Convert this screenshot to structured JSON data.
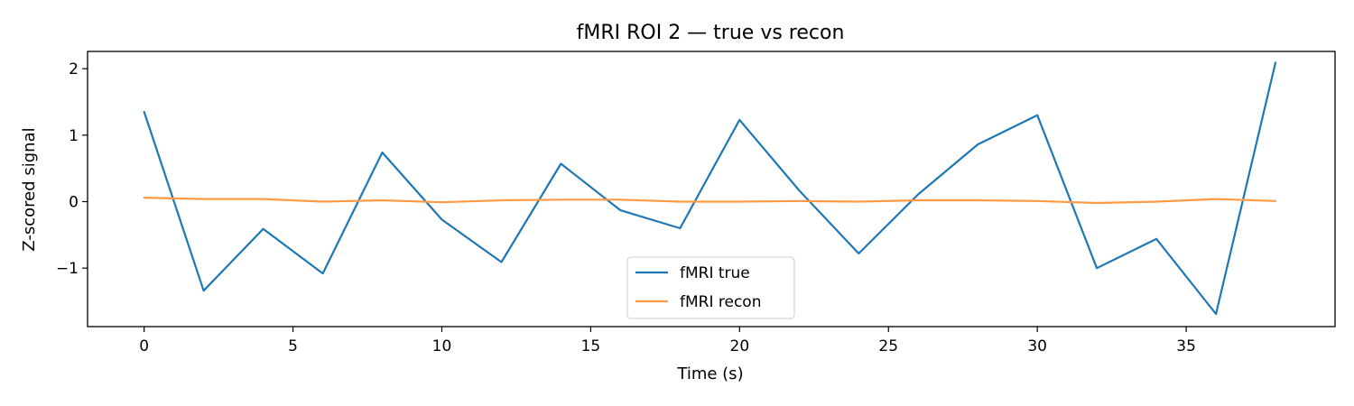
{
  "chart_data": {
    "type": "line",
    "title": "fMRI ROI 2 — true vs recon",
    "xlabel": "Time (s)",
    "ylabel": "Z-scored signal",
    "xlim": [
      -1.9,
      40.0
    ],
    "ylim": [
      -1.88,
      2.26
    ],
    "x_ticks": [
      0,
      5,
      10,
      15,
      20,
      25,
      30,
      35
    ],
    "x_tick_labels": [
      "0",
      "5",
      "10",
      "15",
      "20",
      "25",
      "30",
      "35"
    ],
    "y_ticks": [
      -1,
      0,
      1,
      2
    ],
    "y_tick_labels": [
      "−1",
      "0",
      "1",
      "2"
    ],
    "grid": false,
    "legend_position": "lower-center",
    "x": [
      0,
      2,
      4,
      6,
      8,
      10,
      12,
      14,
      16,
      18,
      20,
      22,
      24,
      26,
      28,
      30,
      32,
      34,
      36,
      38
    ],
    "series": [
      {
        "name": "fMRI true",
        "color": "#1f77b4",
        "values": [
          1.35,
          -1.34,
          -0.41,
          -1.08,
          0.74,
          -0.27,
          -0.91,
          0.57,
          -0.13,
          -0.4,
          1.23,
          0.17,
          -0.78,
          0.11,
          0.86,
          1.3,
          -1.0,
          -0.56,
          -1.69,
          2.09
        ]
      },
      {
        "name": "fMRI recon",
        "color": "#ff9a45",
        "values": [
          0.06,
          0.04,
          0.04,
          0.0,
          0.02,
          -0.01,
          0.02,
          0.03,
          0.03,
          0.0,
          0.0,
          0.01,
          0.0,
          0.02,
          0.02,
          0.01,
          -0.02,
          0.0,
          0.04,
          0.01
        ]
      }
    ]
  }
}
